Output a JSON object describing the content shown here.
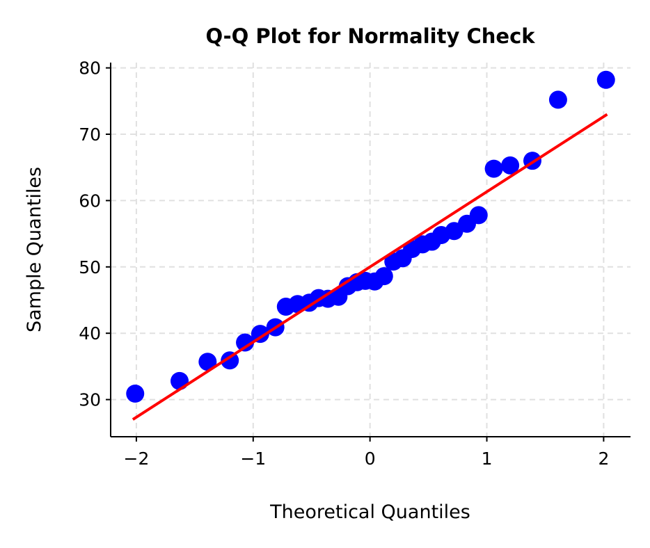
{
  "chart_data": {
    "type": "scatter",
    "title": "Q-Q Plot for Normality Check",
    "xlabel": "Theoretical Quantiles",
    "ylabel": "Sample Quantiles",
    "xlim": [
      -2.22,
      2.23
    ],
    "ylim": [
      24.4,
      80.8
    ],
    "xticks": [
      -2,
      -1,
      0,
      1,
      2
    ],
    "xtick_labels": [
      "−2",
      "−1",
      "0",
      "1",
      "2"
    ],
    "yticks": [
      30,
      40,
      50,
      60,
      70,
      80
    ],
    "ytick_labels": [
      "30",
      "40",
      "50",
      "60",
      "70",
      "80"
    ],
    "grid": true,
    "colors": {
      "points": "#0000ff",
      "line": "#ff0000",
      "grid": "#e0e0e0"
    },
    "points": {
      "x": [
        -2.01,
        -1.63,
        -1.39,
        -1.2,
        -1.07,
        -0.94,
        -0.81,
        -0.72,
        -0.62,
        -0.52,
        -0.44,
        -0.36,
        -0.27,
        -0.19,
        -0.11,
        -0.04,
        0.04,
        0.12,
        0.2,
        0.28,
        0.36,
        0.45,
        0.53,
        0.61,
        0.72,
        0.83,
        0.93,
        1.06,
        1.2,
        1.39,
        1.61,
        2.02
      ],
      "y": [
        30.9,
        32.8,
        35.7,
        35.9,
        38.6,
        39.9,
        40.9,
        44.0,
        44.4,
        44.6,
        45.3,
        45.2,
        45.5,
        47.1,
        47.7,
        47.9,
        47.8,
        48.6,
        50.8,
        51.3,
        52.7,
        53.4,
        53.8,
        54.8,
        55.4,
        56.5,
        57.8,
        64.8,
        65.3,
        66.0,
        75.2,
        78.2
      ]
    },
    "reference_line": {
      "x": [
        -2.03,
        2.03
      ],
      "y": [
        27.0,
        73.0
      ]
    }
  }
}
